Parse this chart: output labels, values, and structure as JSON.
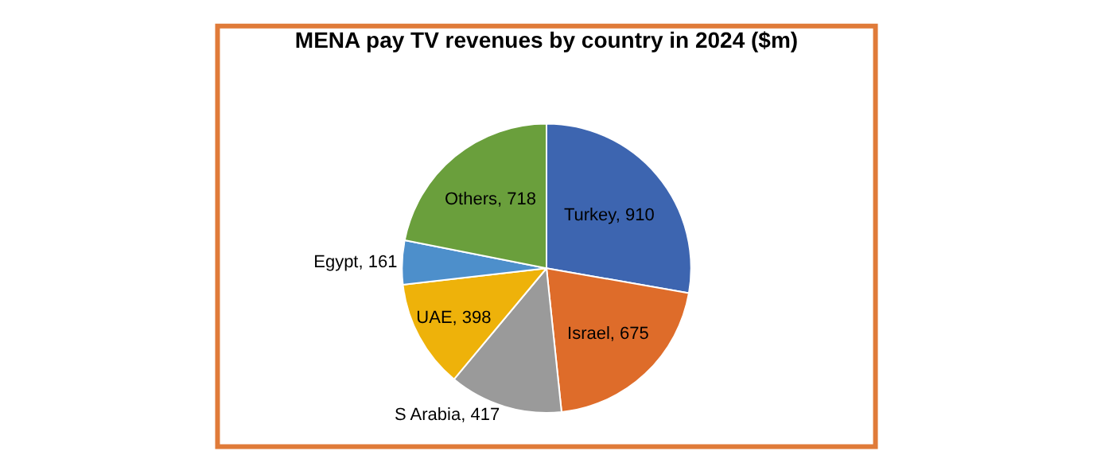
{
  "chart_data": {
    "type": "pie",
    "title": "MENA pay TV revenues by country in 2024 ($m)",
    "categories": [
      "Turkey",
      "Israel",
      "S Arabia",
      "UAE",
      "Egypt",
      "Others"
    ],
    "values": [
      910,
      675,
      417,
      398,
      161,
      718
    ],
    "value_labels": [
      ", 910",
      ", 675",
      ", 417",
      ", 398",
      ", 161",
      ", 718"
    ],
    "colors": [
      "#3d65b0",
      "#de6c2a",
      "#9a9a9a",
      "#eeb20a",
      "#4d8fcb",
      "#6a9f3c"
    ],
    "legend": false
  }
}
